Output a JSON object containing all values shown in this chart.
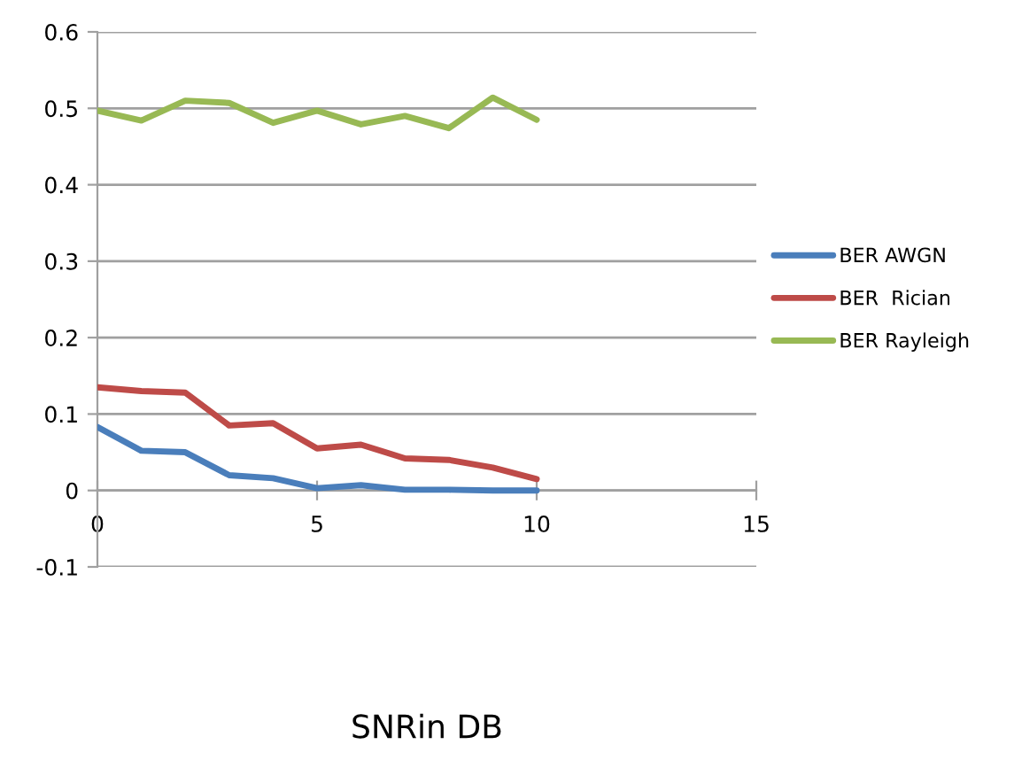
{
  "chart_data": {
    "type": "line",
    "xlabel": "SNRin DB",
    "x": [
      0,
      1,
      2,
      3,
      4,
      5,
      6,
      7,
      8,
      9,
      10
    ],
    "series": [
      {
        "name": "BER AWGN",
        "color": "#4a7ebb",
        "values": [
          0.083,
          0.052,
          0.05,
          0.02,
          0.016,
          0.003,
          0.007,
          0.001,
          0.001,
          0.0,
          0.0
        ]
      },
      {
        "name": "BER  Rician",
        "color": "#be4b48",
        "values": [
          0.135,
          0.13,
          0.128,
          0.085,
          0.088,
          0.055,
          0.06,
          0.042,
          0.04,
          0.03,
          0.015
        ]
      },
      {
        "name": "BER Rayleigh",
        "color": "#98b954",
        "values": [
          0.497,
          0.484,
          0.51,
          0.507,
          0.481,
          0.497,
          0.479,
          0.49,
          0.474,
          0.514,
          0.485
        ]
      }
    ],
    "xlim": [
      0,
      15
    ],
    "xticks": [
      0,
      5,
      10,
      15
    ],
    "ylim": [
      -0.1,
      0.6
    ],
    "yticks": [
      -0.1,
      0,
      0.1,
      0.2,
      0.3,
      0.4,
      0.5,
      0.6
    ],
    "grid": "y",
    "legend": "right",
    "line_style": "solid",
    "marker": "none"
  }
}
